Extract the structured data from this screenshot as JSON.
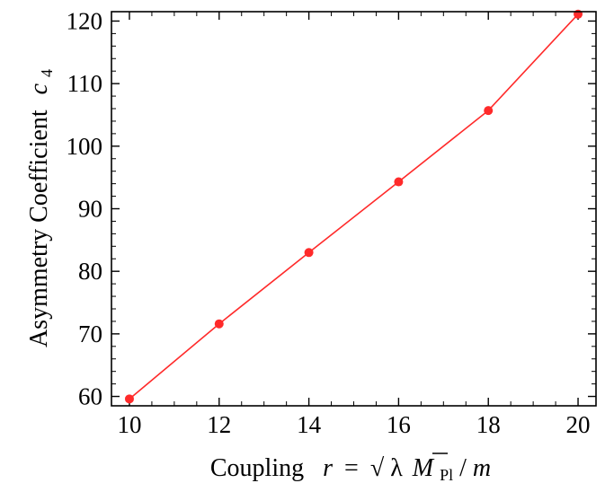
{
  "chart_data": {
    "type": "line",
    "x": [
      10,
      12,
      14,
      16,
      18,
      20
    ],
    "series": [
      {
        "values": [
          59.6,
          71.6,
          83.0,
          94.3,
          105.7,
          121.1
        ]
      }
    ],
    "xlim": [
      9.6,
      20.4
    ],
    "ylim": [
      58.5,
      121.5
    ],
    "xticks": [
      10,
      12,
      14,
      16,
      18,
      20
    ],
    "yticks": [
      60,
      70,
      80,
      90,
      100,
      110,
      120
    ],
    "xlabel": {
      "prefix": "Coupling",
      "r": "r",
      "eq": "=",
      "sqrt": "√",
      "lambda": "λ",
      "M": "M",
      "Pl": "Pl",
      "slash": "/",
      "m": "m"
    },
    "ylabel": {
      "text": "Asymmetry Coefficient",
      "c": "c",
      "sub": "4"
    },
    "color": "#ff2a2a",
    "grid": false
  }
}
